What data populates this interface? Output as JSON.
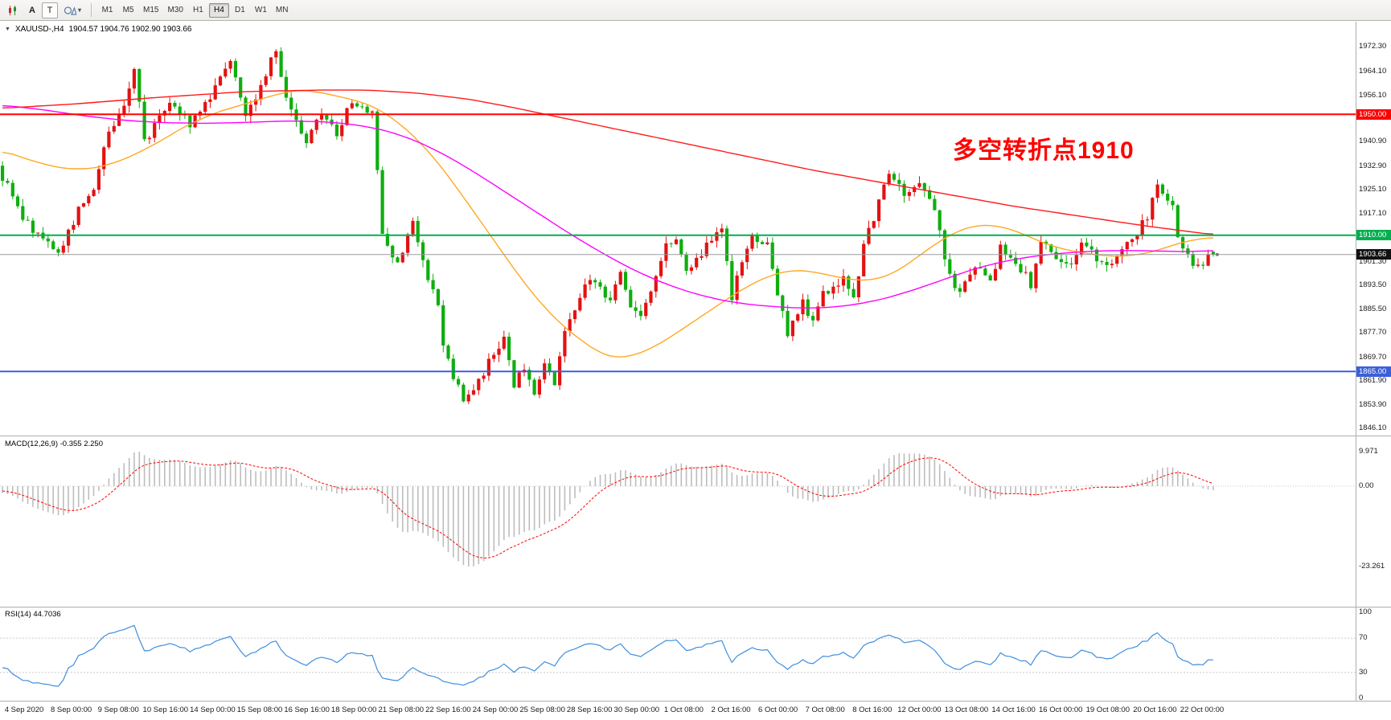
{
  "colors": {
    "bull": "#E31212",
    "bear": "#0FAE0F",
    "ma_fast": "#FFA820",
    "ma_mid": "#FF00FF",
    "ma_slow": "#FF1A1A",
    "level_red": "#FF0000",
    "level_green": "#00B050",
    "level_blue": "#3B5FD9",
    "current_chip": "#111111",
    "macd_hist": "#BDBDBD",
    "macd_signal": "#FF0000",
    "rsi_line": "#3E8EDE",
    "annotation": "#FF0000"
  },
  "toolbar": {
    "caret_glyph": "▾",
    "tools": [
      {
        "name": "chart-type",
        "icon": "candlestick-chart-icon"
      },
      {
        "name": "text-tool",
        "label": "A"
      },
      {
        "name": "label-tool",
        "label": "T"
      },
      {
        "name": "shapes-tool",
        "icon": "geometric-shapes-icon"
      }
    ],
    "timeframes": [
      {
        "label": "M1"
      },
      {
        "label": "M5"
      },
      {
        "label": "M15"
      },
      {
        "label": "M30"
      },
      {
        "label": "H1"
      },
      {
        "label": "H4",
        "active": true
      },
      {
        "label": "D1"
      },
      {
        "label": "W1"
      },
      {
        "label": "MN"
      }
    ]
  },
  "chart": {
    "header": {
      "caret": "▼",
      "symbol_period": "XAUUSD-,H4",
      "ohlc": "1904.57 1904.76 1902.90 1903.66"
    },
    "annotation": "多空转折点1910",
    "axis_ticks": [
      {
        "label": "1972.30",
        "price": 1972.3
      },
      {
        "label": "1964.10",
        "price": 1964.1
      },
      {
        "label": "1956.10",
        "price": 1956.1
      },
      {
        "label": "1940.90",
        "price": 1940.9
      },
      {
        "label": "1932.90",
        "price": 1932.9
      },
      {
        "label": "1925.10",
        "price": 1925.1
      },
      {
        "label": "1917.10",
        "price": 1917.1
      },
      {
        "label": "1901.30",
        "price": 1901.3
      },
      {
        "label": "1893.50",
        "price": 1893.5
      },
      {
        "label": "1885.50",
        "price": 1885.5
      },
      {
        "label": "1877.70",
        "price": 1877.7
      },
      {
        "label": "1869.70",
        "price": 1869.7
      },
      {
        "label": "1861.90",
        "price": 1861.9
      },
      {
        "label": "1853.90",
        "price": 1853.9
      },
      {
        "label": "1846.10",
        "price": 1846.1
      }
    ],
    "levels": [
      {
        "label": "1950.00",
        "price": 1950.0,
        "color": "#FF0000"
      },
      {
        "label": "1910.00",
        "price": 1910.0,
        "color": "#00B050"
      },
      {
        "label": "1865.00",
        "price": 1865.0,
        "color": "#3B5FD9"
      }
    ],
    "current": {
      "label": "1903.66",
      "price": 1903.66
    }
  },
  "macd_panel": {
    "label": "MACD(12,26,9) -0.355 2.250",
    "axis": [
      {
        "label": "9.971",
        "value": 9.971
      },
      {
        "label": "0.00",
        "value": 0
      },
      {
        "label": "-23.261",
        "value": -23.261
      }
    ]
  },
  "rsi_panel": {
    "label": "RSI(14) 44.7036",
    "axis": [
      {
        "label": "100",
        "value": 100
      },
      {
        "label": "70",
        "value": 70
      },
      {
        "label": "30",
        "value": 30
      },
      {
        "label": "0",
        "value": 0
      }
    ],
    "levels": [
      70,
      30
    ]
  },
  "time_axis": {
    "labels": [
      "4 Sep 2020",
      "8 Sep 00:00",
      "9 Sep 08:00",
      "10 Sep 16:00",
      "14 Sep 00:00",
      "15 Sep 08:00",
      "16 Sep 16:00",
      "18 Sep 00:00",
      "21 Sep 08:00",
      "22 Sep 16:00",
      "24 Sep 00:00",
      "25 Sep 08:00",
      "28 Sep 16:00",
      "30 Sep 00:00",
      "1 Oct 08:00",
      "2 Oct 16:00",
      "6 Oct 00:00",
      "7 Oct 08:00",
      "8 Oct 16:00",
      "12 Oct 00:00",
      "13 Oct 08:00",
      "14 Oct 16:00",
      "16 Oct 00:00",
      "19 Oct 08:00",
      "20 Oct 16:00",
      "22 Oct 00:00"
    ]
  },
  "chart_data": {
    "type": "candlestick",
    "symbol": "XAUUSD-",
    "timeframe": "H4",
    "current_ohlc": {
      "open": 1904.57,
      "high": 1904.76,
      "low": 1902.9,
      "close": 1903.66
    },
    "visible_price_range": [
      1846.1,
      1972.3
    ],
    "horizontal_levels": [
      1950.0,
      1910.0,
      1865.0
    ],
    "n_candles": 240,
    "price_path_anchors": [
      [
        0,
        1933
      ],
      [
        3,
        1922
      ],
      [
        5,
        1916
      ],
      [
        8,
        1910
      ],
      [
        12,
        1904
      ],
      [
        16,
        1918
      ],
      [
        19,
        1926
      ],
      [
        22,
        1944
      ],
      [
        25,
        1952
      ],
      [
        27,
        1966
      ],
      [
        29,
        1941
      ],
      [
        31,
        1946
      ],
      [
        34,
        1955
      ],
      [
        38,
        1947
      ],
      [
        41,
        1953
      ],
      [
        43,
        1960
      ],
      [
        46,
        1969
      ],
      [
        49,
        1951
      ],
      [
        52,
        1959
      ],
      [
        55,
        1972
      ],
      [
        57,
        1954
      ],
      [
        59,
        1948
      ],
      [
        61,
        1941
      ],
      [
        64,
        1950
      ],
      [
        67,
        1944
      ],
      [
        70,
        1954
      ],
      [
        74,
        1950
      ],
      [
        76,
        1912
      ],
      [
        79,
        1900
      ],
      [
        82,
        1914
      ],
      [
        84,
        1901
      ],
      [
        87,
        1888
      ],
      [
        88,
        1872
      ],
      [
        90,
        1864
      ],
      [
        92,
        1856
      ],
      [
        95,
        1861
      ],
      [
        98,
        1871
      ],
      [
        100,
        1876
      ],
      [
        102,
        1861
      ],
      [
        104,
        1866
      ],
      [
        106,
        1857
      ],
      [
        108,
        1866
      ],
      [
        110,
        1861
      ],
      [
        112,
        1880
      ],
      [
        114,
        1886
      ],
      [
        117,
        1896
      ],
      [
        119,
        1892
      ],
      [
        121,
        1889
      ],
      [
        123,
        1899
      ],
      [
        125,
        1886
      ],
      [
        127,
        1884
      ],
      [
        129,
        1891
      ],
      [
        132,
        1906
      ],
      [
        134,
        1910
      ],
      [
        136,
        1899
      ],
      [
        138,
        1902
      ],
      [
        140,
        1906
      ],
      [
        143,
        1911
      ],
      [
        145,
        1890
      ],
      [
        147,
        1900
      ],
      [
        149,
        1909
      ],
      [
        152,
        1908
      ],
      [
        154,
        1890
      ],
      [
        156,
        1878
      ],
      [
        159,
        1888
      ],
      [
        161,
        1882
      ],
      [
        163,
        1891
      ],
      [
        167,
        1896
      ],
      [
        169,
        1889
      ],
      [
        171,
        1906
      ],
      [
        174,
        1921
      ],
      [
        176,
        1930
      ],
      [
        179,
        1924
      ],
      [
        182,
        1928
      ],
      [
        185,
        1919
      ],
      [
        187,
        1901
      ],
      [
        190,
        1890
      ],
      [
        193,
        1901
      ],
      [
        196,
        1894
      ],
      [
        198,
        1906
      ],
      [
        200,
        1902
      ],
      [
        202,
        1899
      ],
      [
        204,
        1894
      ],
      [
        206,
        1908
      ],
      [
        209,
        1903
      ],
      [
        211,
        1899
      ],
      [
        214,
        1906
      ],
      [
        217,
        1903
      ],
      [
        219,
        1899
      ],
      [
        222,
        1906
      ],
      [
        225,
        1911
      ],
      [
        227,
        1916
      ],
      [
        229,
        1926
      ],
      [
        231,
        1923
      ],
      [
        232,
        1919
      ],
      [
        233,
        1910
      ],
      [
        235,
        1904
      ],
      [
        237,
        1899
      ],
      [
        239,
        1903.7
      ]
    ],
    "ma_overlays": [
      {
        "name": "ma-fast-orange",
        "color": "#FFA820",
        "anchors": [
          [
            0,
            1938
          ],
          [
            6,
            1934.5
          ],
          [
            12,
            1932
          ],
          [
            18,
            1932
          ],
          [
            24,
            1935
          ],
          [
            30,
            1940
          ],
          [
            36,
            1946
          ],
          [
            42,
            1950.5
          ],
          [
            48,
            1953.5
          ],
          [
            54,
            1956.5
          ],
          [
            58,
            1958
          ],
          [
            62,
            1957.5
          ],
          [
            66,
            1956
          ],
          [
            70,
            1954.5
          ],
          [
            74,
            1952
          ],
          [
            78,
            1947.5
          ],
          [
            82,
            1941.5
          ],
          [
            86,
            1934
          ],
          [
            90,
            1925
          ],
          [
            94,
            1915.5
          ],
          [
            98,
            1906
          ],
          [
            102,
            1896.5
          ],
          [
            106,
            1888
          ],
          [
            110,
            1881
          ],
          [
            114,
            1875.5
          ],
          [
            118,
            1871
          ],
          [
            121,
            1869.5
          ],
          [
            124,
            1870
          ],
          [
            128,
            1872.5
          ],
          [
            132,
            1876.5
          ],
          [
            136,
            1881
          ],
          [
            140,
            1885.5
          ],
          [
            144,
            1890
          ],
          [
            148,
            1894
          ],
          [
            152,
            1897
          ],
          [
            156,
            1898.5
          ],
          [
            160,
            1898
          ],
          [
            164,
            1896.5
          ],
          [
            168,
            1895.2
          ],
          [
            172,
            1895.2
          ],
          [
            176,
            1897.5
          ],
          [
            180,
            1902
          ],
          [
            184,
            1907
          ],
          [
            188,
            1911
          ],
          [
            192,
            1913.3
          ],
          [
            196,
            1913.3
          ],
          [
            200,
            1911.5
          ],
          [
            204,
            1908.5
          ],
          [
            208,
            1906
          ],
          [
            212,
            1904.5
          ],
          [
            216,
            1903.5
          ],
          [
            220,
            1903
          ],
          [
            224,
            1903.5
          ],
          [
            228,
            1905
          ],
          [
            232,
            1907.3
          ],
          [
            236,
            1908.8
          ],
          [
            240,
            1909.5
          ]
        ]
      },
      {
        "name": "ma-mid-magenta",
        "color": "#FF00FF",
        "anchors": [
          [
            0,
            1953
          ],
          [
            8,
            1951.5
          ],
          [
            16,
            1949.5
          ],
          [
            24,
            1948
          ],
          [
            32,
            1947.2
          ],
          [
            40,
            1947
          ],
          [
            48,
            1947.3
          ],
          [
            56,
            1947.8
          ],
          [
            64,
            1947.5
          ],
          [
            70,
            1946.5
          ],
          [
            76,
            1944.5
          ],
          [
            82,
            1941
          ],
          [
            88,
            1936
          ],
          [
            94,
            1930
          ],
          [
            100,
            1923.5
          ],
          [
            106,
            1917
          ],
          [
            112,
            1910.5
          ],
          [
            118,
            1904.5
          ],
          [
            124,
            1899
          ],
          [
            130,
            1894.5
          ],
          [
            136,
            1891
          ],
          [
            142,
            1888.5
          ],
          [
            148,
            1887
          ],
          [
            156,
            1886
          ],
          [
            162,
            1886
          ],
          [
            168,
            1887
          ],
          [
            174,
            1889
          ],
          [
            180,
            1892
          ],
          [
            186,
            1895.5
          ],
          [
            192,
            1899
          ],
          [
            198,
            1901.5
          ],
          [
            204,
            1903.2
          ],
          [
            210,
            1904.2
          ],
          [
            216,
            1904.8
          ],
          [
            222,
            1905
          ],
          [
            228,
            1904.8
          ],
          [
            234,
            1904.6
          ],
          [
            240,
            1905
          ]
        ]
      },
      {
        "name": "ma-slow-red",
        "color": "#FF1A1A",
        "anchors": [
          [
            0,
            1952
          ],
          [
            15,
            1953.5
          ],
          [
            30,
            1955.5
          ],
          [
            48,
            1957.5
          ],
          [
            62,
            1958
          ],
          [
            72,
            1958
          ],
          [
            82,
            1957
          ],
          [
            92,
            1955
          ],
          [
            100,
            1952.5
          ],
          [
            110,
            1949
          ],
          [
            120,
            1945.5
          ],
          [
            130,
            1942
          ],
          [
            140,
            1938.5
          ],
          [
            150,
            1935
          ],
          [
            160,
            1931.5
          ],
          [
            170,
            1928.5
          ],
          [
            180,
            1925.5
          ],
          [
            190,
            1922.5
          ],
          [
            200,
            1919.5
          ],
          [
            210,
            1917
          ],
          [
            218,
            1915
          ],
          [
            226,
            1913
          ],
          [
            233,
            1911.5
          ],
          [
            240,
            1910
          ]
        ]
      }
    ],
    "indicators": [
      {
        "type": "MACD",
        "params": [
          12,
          26,
          9
        ],
        "current": [
          -0.355,
          2.25
        ],
        "range": [
          -23.261,
          9.971
        ]
      },
      {
        "type": "RSI",
        "params": [
          14
        ],
        "current": 44.7036,
        "scale": [
          0,
          100
        ],
        "levels": [
          30,
          70
        ]
      }
    ]
  }
}
